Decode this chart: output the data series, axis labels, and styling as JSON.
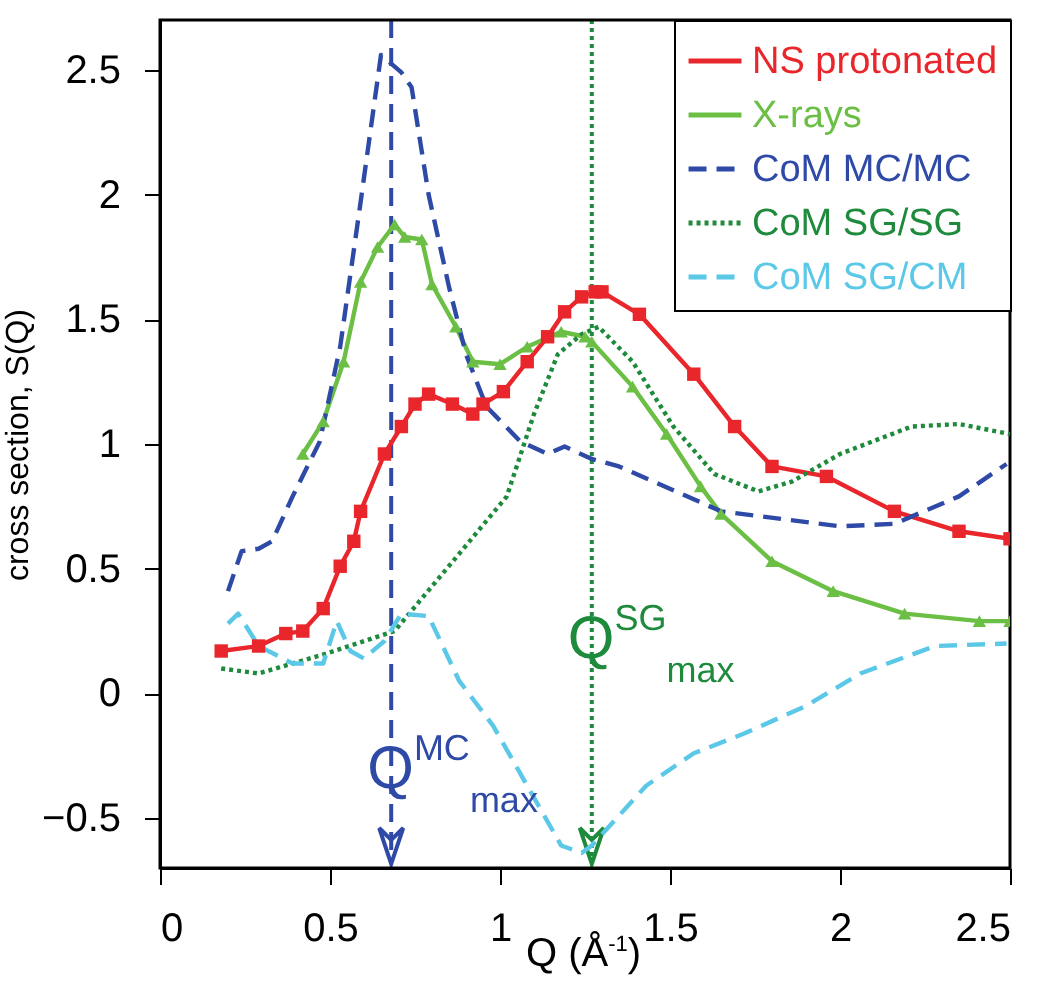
{
  "chart_data": {
    "type": "line",
    "xlabel": "Q (Å$^{-1}$)",
    "ylabel": "cross section, S(Q)",
    "xlim": [
      0,
      2.5
    ],
    "ylim": [
      -0.7,
      2.7
    ],
    "xticks": [
      0,
      0.5,
      1,
      1.5,
      2,
      2.5
    ],
    "yticks": [
      -0.5,
      0,
      0.5,
      1,
      1.5,
      2,
      2.5
    ],
    "legend": "top right",
    "grid": false,
    "series": [
      {
        "name": "NS protonated",
        "color": "#e8262b",
        "marker": "square",
        "line_style": "solid",
        "x": [
          0.18,
          0.29,
          0.37,
          0.42,
          0.48,
          0.53,
          0.57,
          0.59,
          0.66,
          0.71,
          0.75,
          0.79,
          0.86,
          0.92,
          0.95,
          1.01,
          1.08,
          1.14,
          1.19,
          1.24,
          1.28,
          1.3,
          1.41,
          1.57,
          1.69,
          1.8,
          1.96,
          2.16,
          2.35,
          2.5
        ],
        "values": [
          0.17,
          0.19,
          0.24,
          0.25,
          0.34,
          0.51,
          0.61,
          0.73,
          0.96,
          1.07,
          1.16,
          1.2,
          1.16,
          1.12,
          1.16,
          1.21,
          1.33,
          1.43,
          1.53,
          1.59,
          1.61,
          1.61,
          1.52,
          1.28,
          1.07,
          0.91,
          0.87,
          0.73,
          0.65,
          0.62
        ]
      },
      {
        "name": "X-rays",
        "color": "#6cbf45",
        "marker": "triangle",
        "line_style": "solid",
        "x": [
          0.42,
          0.48,
          0.54,
          0.59,
          0.64,
          0.69,
          0.72,
          0.77,
          0.8,
          0.87,
          0.92,
          1.0,
          1.08,
          1.18,
          1.25,
          1.27,
          1.39,
          1.49,
          1.59,
          1.65,
          1.8,
          1.98,
          2.19,
          2.41,
          2.5
        ],
        "values": [
          0.96,
          1.09,
          1.33,
          1.65,
          1.79,
          1.88,
          1.83,
          1.82,
          1.64,
          1.47,
          1.33,
          1.32,
          1.39,
          1.45,
          1.43,
          1.41,
          1.23,
          1.04,
          0.83,
          0.72,
          0.53,
          0.41,
          0.32,
          0.29,
          0.29
        ]
      },
      {
        "name": "CoM MC/MC",
        "color": "#2e4aa6",
        "marker": "none",
        "line_style": "dashed",
        "x": [
          0.2,
          0.24,
          0.29,
          0.33,
          0.39,
          0.47,
          0.53,
          0.59,
          0.65,
          0.71,
          0.74,
          0.79,
          0.85,
          0.9,
          0.96,
          1.06,
          1.14,
          1.19,
          1.27,
          1.35,
          1.65,
          2.0,
          2.16,
          2.35,
          2.49
        ],
        "values": [
          0.41,
          0.57,
          0.58,
          0.61,
          0.79,
          1.01,
          1.39,
          1.97,
          2.56,
          2.49,
          2.43,
          2.0,
          1.63,
          1.36,
          1.15,
          1.01,
          0.96,
          0.99,
          0.94,
          0.91,
          0.73,
          0.67,
          0.68,
          0.79,
          0.92
        ]
      },
      {
        "name": "CoM SG/SG",
        "color": "#1e8a3c",
        "marker": "none",
        "line_style": "dotted",
        "x": [
          0.18,
          0.29,
          0.49,
          0.69,
          0.88,
          1.02,
          1.1,
          1.17,
          1.24,
          1.29,
          1.39,
          1.51,
          1.63,
          1.76,
          1.86,
          2.0,
          2.21,
          2.35,
          2.5
        ],
        "values": [
          0.1,
          0.08,
          0.16,
          0.25,
          0.56,
          0.79,
          1.12,
          1.36,
          1.44,
          1.47,
          1.33,
          1.07,
          0.88,
          0.81,
          0.85,
          0.96,
          1.07,
          1.08,
          1.04
        ]
      },
      {
        "name": "CoM SG/CM",
        "color": "#5bc8e8",
        "marker": "none",
        "line_style": "dashed",
        "x": [
          0.2,
          0.23,
          0.29,
          0.39,
          0.48,
          0.52,
          0.56,
          0.6,
          0.66,
          0.71,
          0.79,
          0.88,
          0.98,
          1.08,
          1.18,
          1.24,
          1.27,
          1.43,
          1.57,
          1.72,
          1.9,
          2.06,
          2.28,
          2.49
        ],
        "values": [
          0.28,
          0.32,
          0.19,
          0.12,
          0.12,
          0.29,
          0.17,
          0.14,
          0.21,
          0.32,
          0.31,
          0.05,
          -0.13,
          -0.37,
          -0.61,
          -0.64,
          -0.61,
          -0.37,
          -0.24,
          -0.16,
          -0.05,
          0.08,
          0.19,
          0.2
        ]
      }
    ],
    "ref_lines": [
      {
        "axis": "x",
        "value": 0.68,
        "label": "Q$^{MC}$$_{max}$",
        "color": "#2e4aa6",
        "line_style": "dashed"
      },
      {
        "axis": "x",
        "value": 1.27,
        "label": "Q$^{SG}$$_{max}$",
        "color": "#1e8a3c",
        "line_style": "dotted"
      }
    ]
  }
}
